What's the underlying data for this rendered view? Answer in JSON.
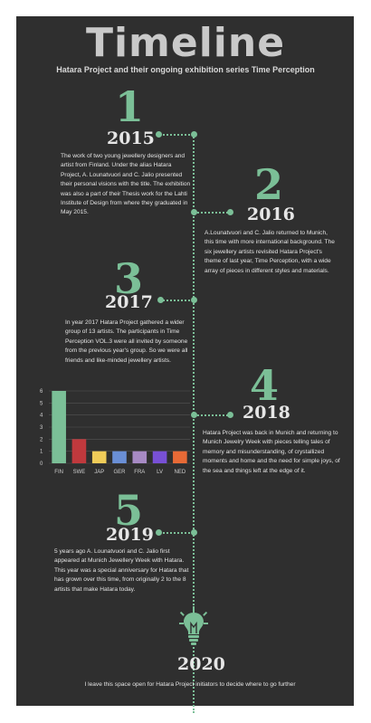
{
  "header": {
    "title": "Timeline",
    "subtitle": "Hatara Project and their ongoing exhibition series Time Perception"
  },
  "entries": [
    {
      "number": "1",
      "year": "2015",
      "text": "The work of two young jewellery designers and artist from Finland. Under the alias Hatara Project, A. Lounatvuori and C. Jalio presented their personal visions with the title. The exhibition was also a part of their Thesis work for the Lahti Institute of Design from where they graduated in May 2015."
    },
    {
      "number": "2",
      "year": "2016",
      "text": "A.Lounatvuori and C. Jalio returned to Munich, this time with more international background. The six jewellery artists revisited Hatara Project's theme of last year, Time Perception, with a wide array of pieces in different styles and materials."
    },
    {
      "number": "3",
      "year": "2017",
      "text": "In year 2017 Hatara Project gathered a wider group of 13 artists. The participants in Time Perception VOL.3 were all invited by someone from the previous year's group. So we were all friends and like-minded jewellery artists."
    },
    {
      "number": "4",
      "year": "2018",
      "text": "Hatara Project was back in Munich and returning to Munich Jewelry Week with pieces telling tales of memory and misunderstanding, of crystallized moments and home and the need for simple joys, of the sea and things left at the edge of it."
    },
    {
      "number": "5",
      "year": "2019",
      "text": "5 years ago A. Lounatvuori and C. Jalio first appeared at Munich Jewellery Week with Hatara. This year was a special anniversary for Hatara that has grown over this time, from originally 2 to the 8 artists that make Hatara today."
    },
    {
      "number": "",
      "year": "2020",
      "text": "I leave this space open for Hatara Project initiators to decide where to go further"
    }
  ],
  "icons": {
    "final": "lightbulb-icon"
  },
  "colors": {
    "accent": "#7bbf97",
    "background": "#2f2f2f"
  },
  "chart_data": {
    "type": "bar",
    "categories": [
      "FIN",
      "SWE",
      "JAP",
      "GER",
      "FRA",
      "LV",
      "NED"
    ],
    "values": [
      6,
      2,
      1,
      1,
      1,
      1,
      1
    ],
    "colors": [
      "#7bbf97",
      "#c0393d",
      "#f0cc58",
      "#6a8fd6",
      "#a78ac4",
      "#7850d6",
      "#e86a36"
    ],
    "yticks": [
      0,
      1,
      2,
      3,
      4,
      5,
      6
    ],
    "ylim": [
      0,
      6
    ],
    "grid": true,
    "title": "",
    "xlabel": "",
    "ylabel": ""
  }
}
